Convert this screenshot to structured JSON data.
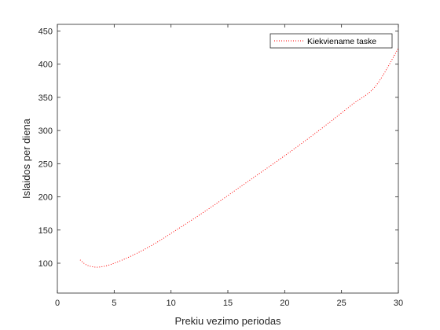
{
  "chart_data": {
    "type": "line",
    "title": "",
    "xlabel": "Prekiu vezimo periodas",
    "ylabel": "Islaidos per diena",
    "xlim": [
      0,
      30
    ],
    "ylim": [
      55,
      460
    ],
    "xticks": [
      0,
      5,
      10,
      15,
      20,
      25,
      30
    ],
    "yticks": [
      100,
      150,
      200,
      250,
      300,
      350,
      400,
      450
    ],
    "grid": false,
    "legend_position": "top-right",
    "series": [
      {
        "name": "Kiekviename taske",
        "color": "#ff0000",
        "line_style": "dotted",
        "x": [
          2,
          2.5,
          3,
          3.5,
          4,
          4.5,
          5,
          6,
          7,
          8,
          9,
          10,
          12,
          14,
          16,
          18,
          20,
          22,
          24,
          26,
          28,
          30
        ],
        "y": [
          105,
          98,
          95,
          94,
          95,
          97,
          100,
          107,
          115,
          124,
          134,
          145,
          167,
          190,
          214,
          238,
          262,
          287,
          313,
          340,
          367,
          424
        ]
      }
    ]
  }
}
